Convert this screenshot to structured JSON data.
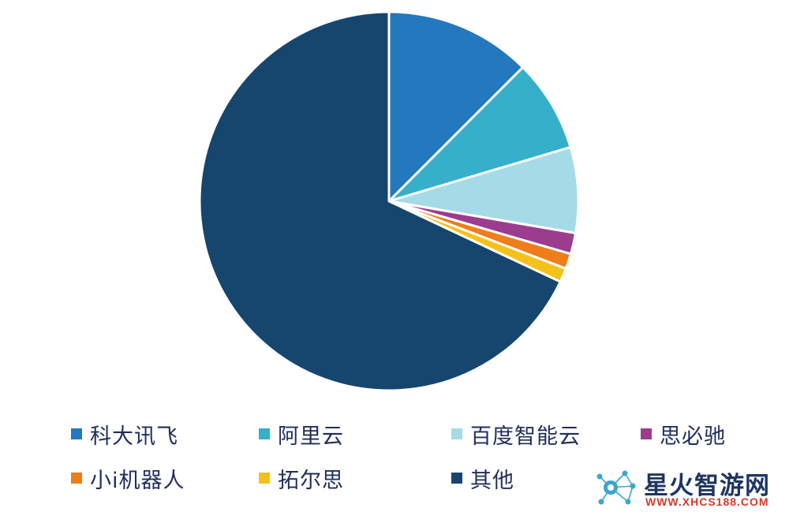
{
  "chart_data": {
    "type": "pie",
    "title": "",
    "start_angle_deg": 0,
    "direction": "clockwise",
    "slices": [
      {
        "label": "科大讯飞",
        "value": 12.5,
        "color": "#2478bd"
      },
      {
        "label": "阿里云",
        "value": 7.9,
        "color": "#35afca"
      },
      {
        "label": "百度智能云",
        "value": 7.3,
        "color": "#a5dbe6"
      },
      {
        "label": "思必驰",
        "value": 1.8,
        "color": "#9b3c8f"
      },
      {
        "label": "小i机器人",
        "value": 1.3,
        "color": "#ee7d1a"
      },
      {
        "label": "拓尔思",
        "value": 1.2,
        "color": "#f4c11c"
      },
      {
        "label": "其他",
        "value": 68.0,
        "color": "#16466e"
      }
    ],
    "legend_position": "bottom"
  },
  "watermark": {
    "title": "星火智游网",
    "url": "WWW.XHCS188.COM"
  }
}
